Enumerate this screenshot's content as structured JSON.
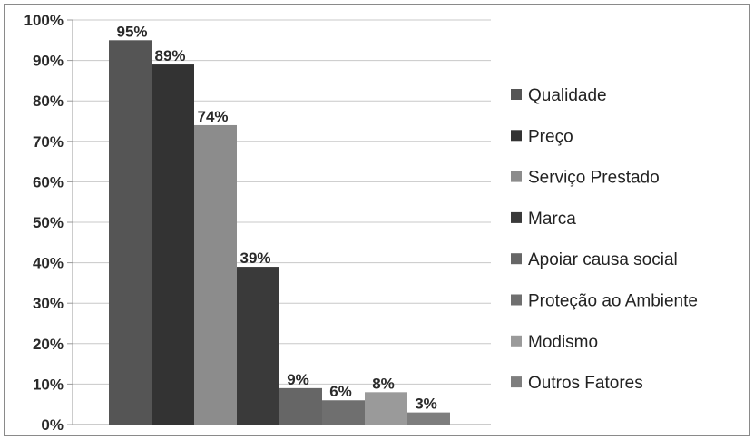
{
  "chart_data": {
    "type": "bar",
    "title": "",
    "xlabel": "",
    "ylabel": "",
    "ylim": [
      0,
      100
    ],
    "y_ticks": [
      "0%",
      "10%",
      "20%",
      "30%",
      "40%",
      "50%",
      "60%",
      "70%",
      "80%",
      "90%",
      "100%"
    ],
    "grid": "horizontal",
    "legend_position": "right",
    "series": [
      {
        "name": "Qualidade",
        "value": 95,
        "label": "95%",
        "color": "#555555"
      },
      {
        "name": "Preço",
        "value": 89,
        "label": "89%",
        "color": "#333333"
      },
      {
        "name": "Serviço Prestado",
        "value": 74,
        "label": "74%",
        "color": "#8c8c8c"
      },
      {
        "name": "Marca",
        "value": 39,
        "label": "39%",
        "color": "#3a3a3a"
      },
      {
        "name": "Apoiar causa social",
        "value": 9,
        "label": "9%",
        "color": "#666666"
      },
      {
        "name": "Proteção ao Ambiente",
        "value": 6,
        "label": "6%",
        "color": "#6f6f6f"
      },
      {
        "name": "Modismo",
        "value": 8,
        "label": "8%",
        "color": "#9a9a9a"
      },
      {
        "name": "Outros Fatores",
        "value": 3,
        "label": "3%",
        "color": "#7e7e7e"
      }
    ]
  }
}
